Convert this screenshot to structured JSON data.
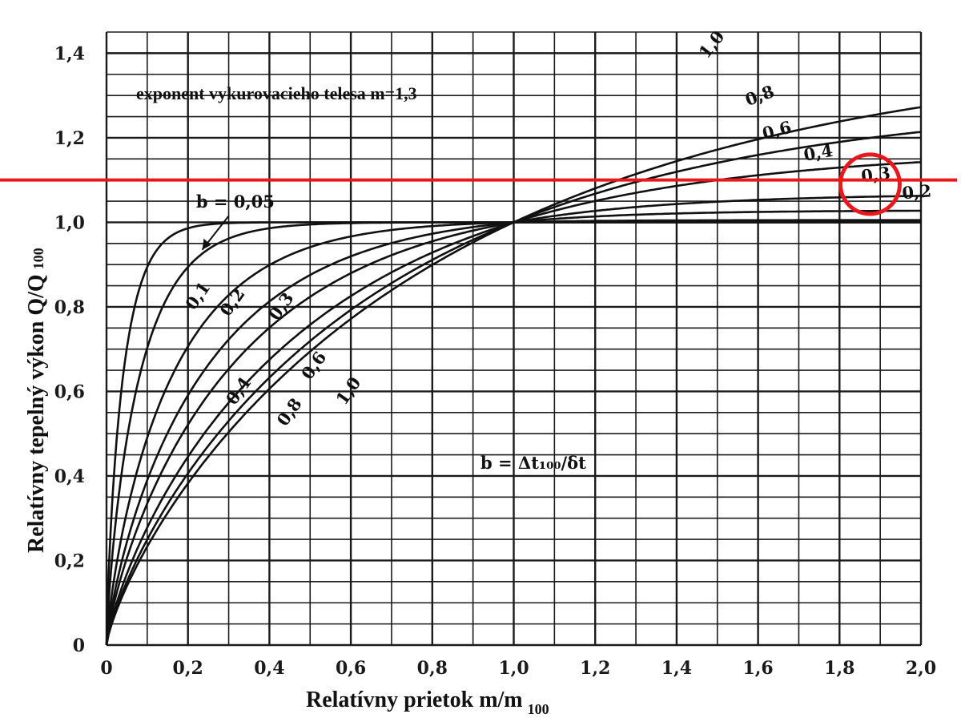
{
  "chart_data": {
    "type": "line",
    "title": "exponent vykurovacieho telesa m=1,3",
    "xlabel": "Relatívny prietok m/m",
    "xlabel_sub": "100",
    "ylabel": "Relatívny tepelný výkon Q/Q",
    "ylabel_sub": "100",
    "xlim": [
      0,
      2.0
    ],
    "ylim": [
      0,
      1.45
    ],
    "x_ticks": [
      "0",
      "0,2",
      "0,4",
      "0,6",
      "0,8",
      "1,0",
      "1,2",
      "1,4",
      "1,6",
      "1,8",
      "2,0"
    ],
    "y_ticks": [
      "0",
      "0,2",
      "0,4",
      "0,6",
      "0,8",
      "1,0",
      "1,2",
      "1,4"
    ],
    "grid": true,
    "parameter_label": "b = Δt₁₀₀/δt",
    "series": [
      {
        "name": "b = 0,05",
        "b": 0.05
      },
      {
        "name": "0,1",
        "b": 0.1
      },
      {
        "name": "0,2",
        "b": 0.2
      },
      {
        "name": "0,3",
        "b": 0.3
      },
      {
        "name": "0,4",
        "b": 0.4
      },
      {
        "name": "0,6",
        "b": 0.6
      },
      {
        "name": "0,8",
        "b": 0.8
      },
      {
        "name": "1,0",
        "b": 1.0
      }
    ],
    "annotations": {
      "reference_line_y": 1.1,
      "highlighted_series_label": "0,3",
      "highlight_color": "#e8191c"
    }
  }
}
